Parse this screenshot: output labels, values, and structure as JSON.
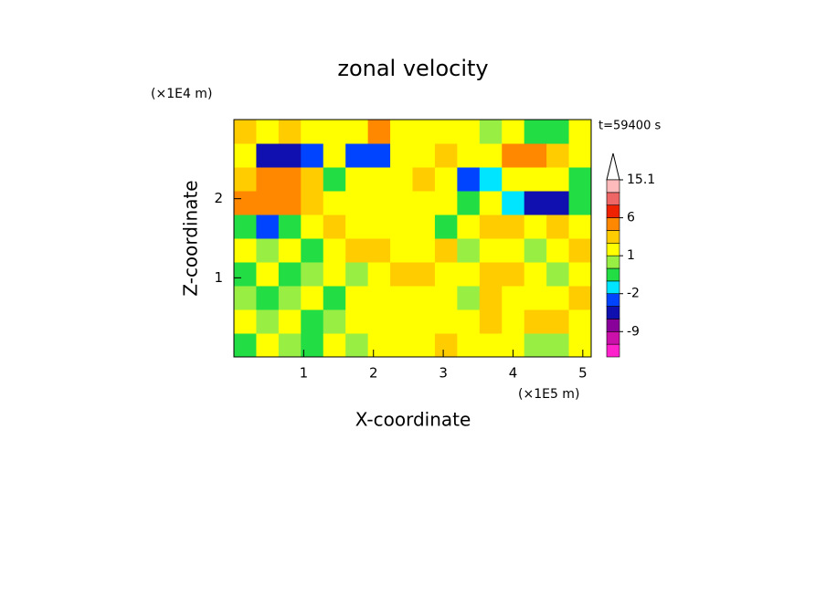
{
  "chart_data": {
    "type": "contourf",
    "title": "zonal velocity",
    "x_label": "X-coordinate",
    "y_label": "Z-coordinate",
    "x_unit": "(×1E5 m)",
    "y_unit": "(×1E4 m)",
    "annotation": "t=59400 s",
    "xlim": [
      0,
      5.12
    ],
    "ylim": [
      0,
      3
    ],
    "xticks": [
      1,
      2,
      3,
      4,
      5
    ],
    "yticks": [
      1,
      2
    ],
    "x": [
      0.16,
      0.48,
      0.8,
      1.12,
      1.44,
      1.76,
      2.08,
      2.4,
      2.72,
      3.04,
      3.36,
      3.68,
      4.0,
      4.32,
      4.64,
      4.96
    ],
    "y": [
      0.15,
      0.45,
      0.75,
      1.05,
      1.35,
      1.65,
      1.95,
      2.25,
      2.55,
      2.85
    ],
    "z": [
      [
        -1,
        1,
        0,
        -1,
        1,
        0,
        1,
        1,
        1,
        2,
        1,
        1,
        1,
        0,
        0,
        1
      ],
      [
        1,
        0,
        1,
        -1,
        0,
        1,
        1,
        1,
        1,
        1,
        1,
        2,
        1,
        3,
        2,
        1
      ],
      [
        0,
        -1,
        0,
        1,
        -1,
        1,
        1,
        1,
        1,
        1,
        0,
        2,
        1,
        1,
        1,
        2
      ],
      [
        -1,
        1,
        -1,
        0,
        1,
        0,
        1,
        3,
        2,
        1,
        1,
        3,
        3,
        1,
        0,
        1
      ],
      [
        1,
        0,
        1,
        -1,
        1,
        3,
        2,
        1,
        1,
        2,
        0,
        1,
        1,
        0,
        1,
        2
      ],
      [
        -1,
        -4,
        -1,
        1,
        2,
        1,
        1,
        1,
        1,
        -1,
        1,
        2,
        2,
        1,
        2,
        1
      ],
      [
        4,
        5,
        4,
        2,
        1,
        1,
        1,
        1,
        1,
        1,
        -1,
        1,
        -2,
        -6,
        -6,
        -1
      ],
      [
        2,
        4,
        4,
        3,
        -1,
        1,
        1,
        1,
        2,
        1,
        -4,
        -2,
        1,
        1,
        1,
        -1
      ],
      [
        1,
        -6,
        -6,
        -4,
        1,
        -4,
        -3,
        1,
        1,
        2,
        1,
        1,
        4,
        5,
        2,
        1
      ],
      [
        2,
        1,
        3,
        1,
        1,
        1,
        4,
        1,
        1,
        1,
        1,
        0,
        1,
        -1,
        -1,
        1
      ]
    ],
    "levels": [
      -15,
      -12,
      -9,
      -6,
      -4,
      -2,
      -1,
      0,
      1,
      2,
      4,
      6,
      9,
      12,
      15.1
    ],
    "colors": [
      "#ff22cc",
      "#cc11aa",
      "#880099",
      "#1010b0",
      "#0044ff",
      "#00e5ff",
      "#22dd44",
      "#99ee44",
      "#ffff00",
      "#ffcc00",
      "#ff8800",
      "#ee2200",
      "#ee6666",
      "#ffbbbb"
    ],
    "colorbar_ticks": [
      -9,
      -2,
      1,
      6,
      15.1
    ]
  }
}
